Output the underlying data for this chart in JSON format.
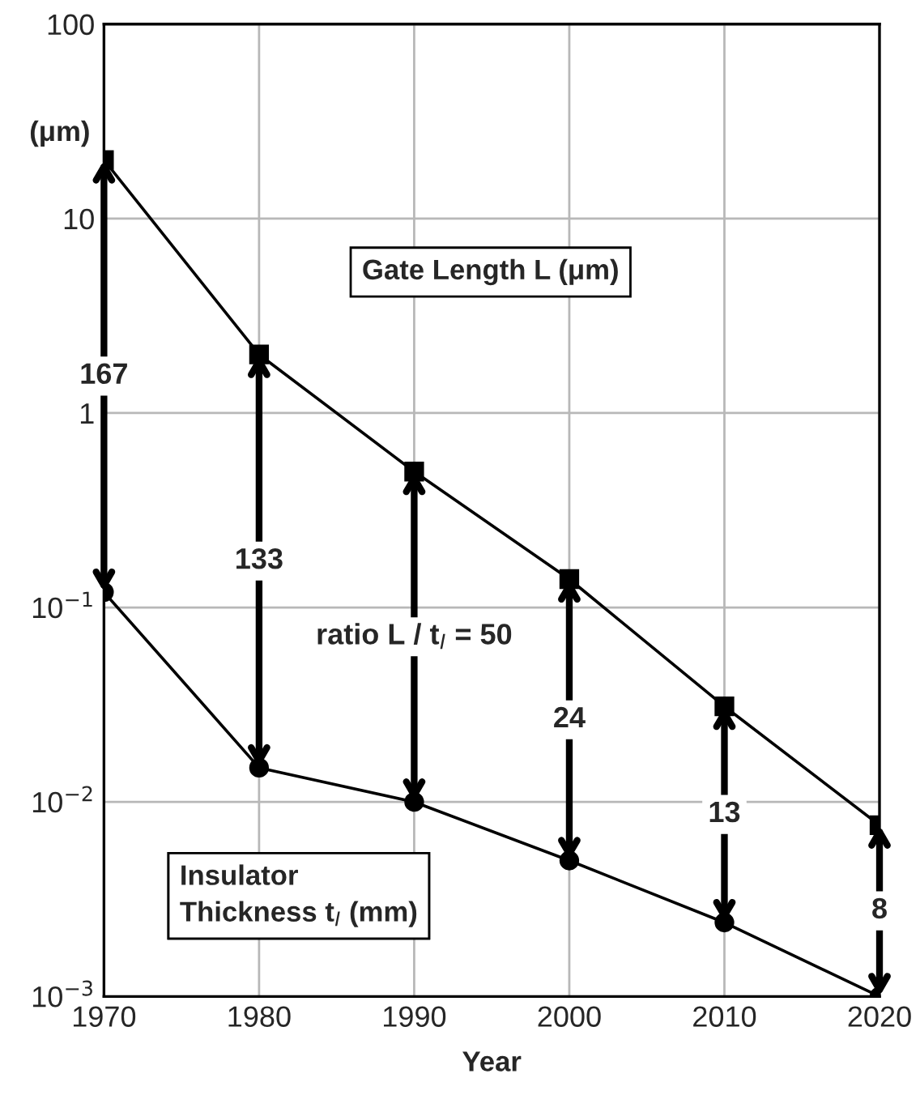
{
  "chart_data": {
    "type": "line",
    "xlabel": "Year",
    "ylabel": "(μm)",
    "log": "y",
    "grid": true,
    "legend": "bottom left",
    "line_style": "solid",
    "x": [
      1970,
      1980,
      1990,
      2000,
      2010,
      2020
    ],
    "xlim": [
      1970,
      2020
    ],
    "xticks": [
      1970,
      1980,
      1990,
      2000,
      2010,
      2020
    ],
    "ylim": [
      0.001,
      100
    ],
    "yticks": [
      {
        "value": 0.001,
        "label": "10$^{−3}$"
      },
      {
        "value": 0.01,
        "label": "10$^{−2}$"
      },
      {
        "value": 0.1,
        "label": "10$^{−1}$"
      },
      1,
      10,
      100
    ],
    "series": [
      {
        "name": "Gate Length L (μm)",
        "color": "#000000",
        "marker": "square",
        "values": [
          20,
          2,
          0.5,
          0.14,
          0.031,
          0.0076
        ]
      },
      {
        "name": "Insulator\nThickness t$_{I}$ (mm)",
        "color": "#000000",
        "marker": "circle",
        "values": [
          0.12,
          0.015,
          0.01,
          0.005,
          0.0024,
          0.001
        ]
      }
    ],
    "annotations": [
      "167",
      "133",
      "ratio L / t$_{I}$ = 50",
      "24",
      "13",
      "8"
    ]
  }
}
